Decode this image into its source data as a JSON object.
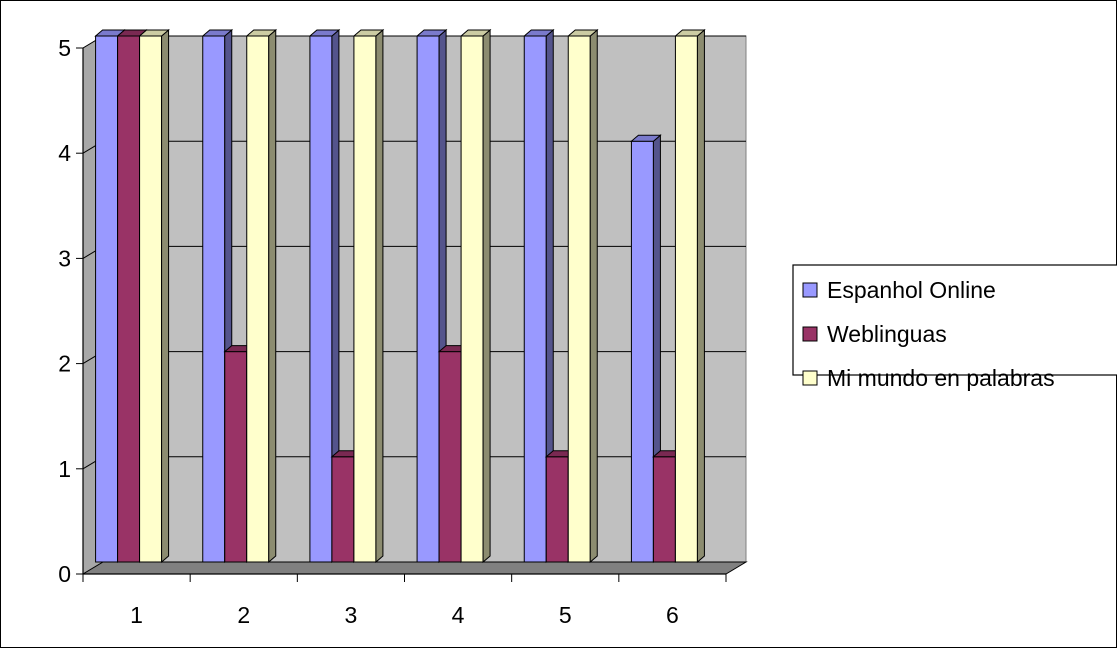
{
  "chart_data": {
    "type": "bar",
    "style": "3d-clustered-column",
    "categories": [
      "1",
      "2",
      "3",
      "4",
      "5",
      "6"
    ],
    "series": [
      {
        "name": "Espanhol Online",
        "values": [
          5,
          5,
          5,
          5,
          5,
          4
        ],
        "color": "#9999ff"
      },
      {
        "name": "Weblinguas",
        "values": [
          5,
          2,
          1,
          2,
          1,
          1
        ],
        "color": "#993366"
      },
      {
        "name": "Mi mundo en palabras",
        "values": [
          5,
          5,
          5,
          5,
          5,
          5
        ],
        "color": "#ffffcc"
      }
    ],
    "yticks": [
      "0",
      "1",
      "2",
      "3",
      "4",
      "5"
    ],
    "ylim": [
      0,
      5
    ],
    "grid": true,
    "legend_position": "right",
    "colors": {
      "wall": "#c0c0c0",
      "floor": "#808080",
      "gridline": "#000000"
    }
  }
}
